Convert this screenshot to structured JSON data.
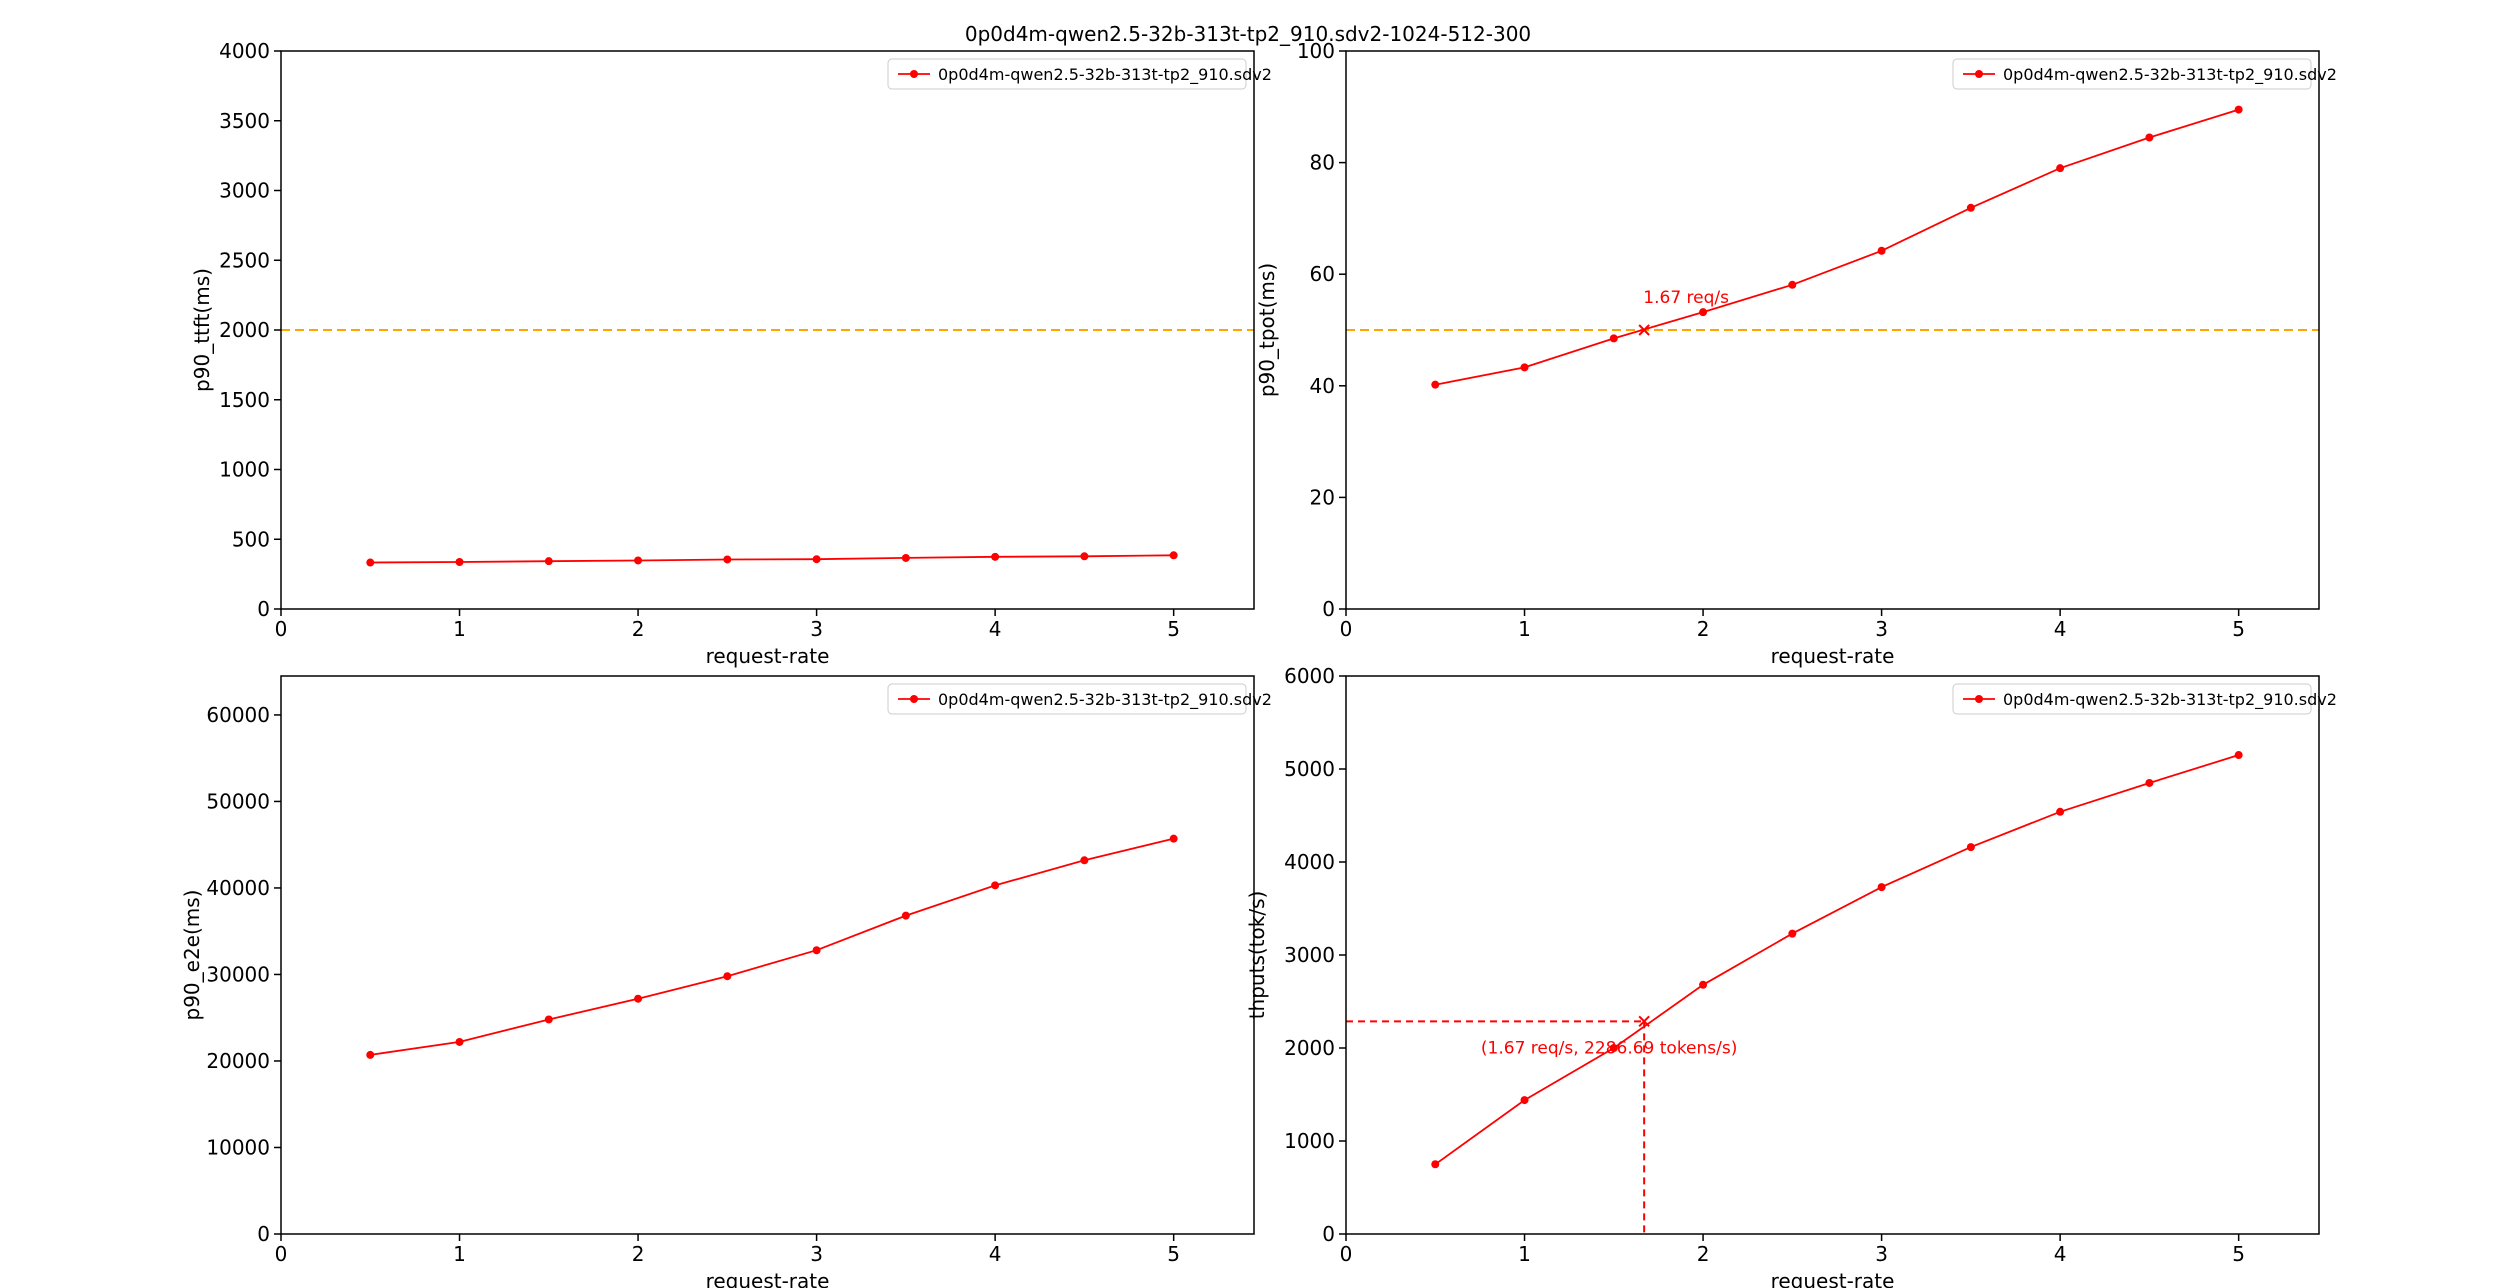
{
  "figure_title": "0p0d4m-qwen2.5-32b-313t-tp2_910.sdv2-1024-512-300",
  "colors": {
    "series": "#ff0000",
    "threshold": "#ffa500",
    "axis": "#000000"
  },
  "chart_data": [
    {
      "type": "line",
      "xlabel": "request-rate",
      "ylabel": "p90_ttft(ms)",
      "xlim": [
        0,
        5.45
      ],
      "ylim": [
        0,
        4000
      ],
      "xticks": [
        0,
        1,
        2,
        3,
        4,
        5
      ],
      "yticks": [
        0,
        500,
        1000,
        1500,
        2000,
        2500,
        3000,
        3500,
        4000
      ],
      "grid": false,
      "legend_position": "top-right",
      "series": [
        {
          "name": "0p0d4m-qwen2.5-32b-313t-tp2_910.sdv2",
          "x": [
            0.5,
            1,
            1.5,
            2,
            2.5,
            3,
            3.5,
            4,
            4.5,
            5
          ],
          "y": [
            333,
            337,
            343,
            348,
            355,
            357,
            366,
            374,
            378,
            385
          ]
        }
      ],
      "threshold": 2000
    },
    {
      "type": "line",
      "xlabel": "request-rate",
      "ylabel": "p90_tpot(ms)",
      "xlim": [
        0,
        5.45
      ],
      "ylim": [
        0,
        100
      ],
      "xticks": [
        0,
        1,
        2,
        3,
        4,
        5
      ],
      "yticks": [
        0,
        20,
        40,
        60,
        80,
        100
      ],
      "grid": false,
      "legend_position": "top-right",
      "series": [
        {
          "name": "0p0d4m-qwen2.5-32b-313t-tp2_910.sdv2",
          "x": [
            0.5,
            1,
            1.5,
            2,
            2.5,
            3,
            3.5,
            4,
            4.5,
            5
          ],
          "y": [
            40.2,
            43.3,
            48.5,
            53.2,
            58.1,
            64.2,
            71.9,
            79.0,
            84.5,
            89.5
          ]
        }
      ],
      "threshold": 50,
      "marker_point": {
        "x": 1.67,
        "y": 50
      },
      "annotation": "1.67 req/s"
    },
    {
      "type": "line",
      "xlabel": "request-rate",
      "ylabel": "p90_e2e(ms)",
      "xlim": [
        0,
        5.45
      ],
      "ylim": [
        0,
        64500
      ],
      "xticks": [
        0,
        1,
        2,
        3,
        4,
        5
      ],
      "yticks": [
        0,
        10000,
        20000,
        30000,
        40000,
        50000,
        60000
      ],
      "grid": false,
      "legend_position": "top-right",
      "series": [
        {
          "name": "0p0d4m-qwen2.5-32b-313t-tp2_910.sdv2",
          "x": [
            0.5,
            1,
            1.5,
            2,
            2.5,
            3,
            3.5,
            4,
            4.5,
            5
          ],
          "y": [
            20700,
            22200,
            24800,
            27200,
            29800,
            32800,
            36800,
            40300,
            43200,
            45700
          ]
        }
      ]
    },
    {
      "type": "line",
      "xlabel": "request-rate",
      "ylabel": "thputs(tok/s)",
      "xlim": [
        0,
        5.45
      ],
      "ylim": [
        0,
        6000
      ],
      "xticks": [
        0,
        1,
        2,
        3,
        4,
        5
      ],
      "yticks": [
        0,
        1000,
        2000,
        3000,
        4000,
        5000,
        6000
      ],
      "grid": false,
      "legend_position": "top-right",
      "series": [
        {
          "name": "0p0d4m-qwen2.5-32b-313t-tp2_910.sdv2",
          "x": [
            0.5,
            1,
            1.5,
            2,
            2.5,
            3,
            3.5,
            4,
            4.5,
            5
          ],
          "y": [
            750,
            1440,
            2000,
            2680,
            3230,
            3730,
            4160,
            4540,
            4850,
            5150
          ]
        }
      ],
      "marker_point": {
        "x": 1.67,
        "y": 2286.69
      },
      "annotation": "(1.67 req/s, 2286.69 tokens/s)"
    }
  ]
}
